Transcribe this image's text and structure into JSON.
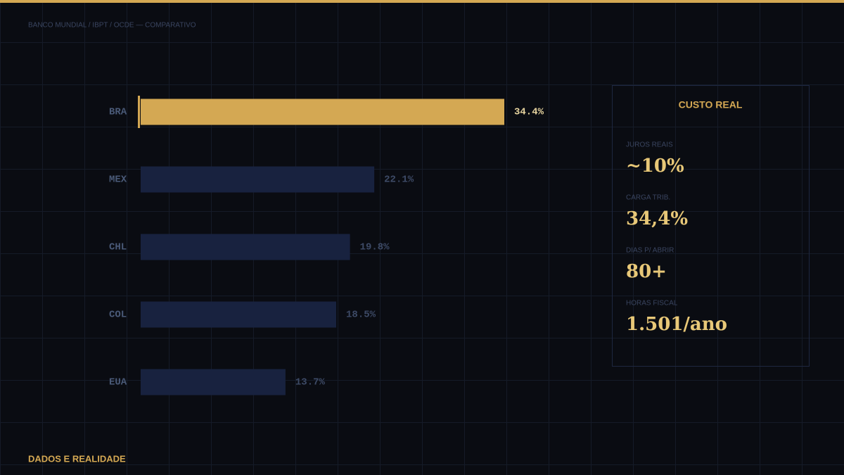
{
  "source": "BANCO MUNDIAL / IBPT / OCDE — COMPARATIVO",
  "footer": "DADOS E REALIDADE",
  "chart_data": {
    "type": "bar",
    "orientation": "horizontal",
    "categories": [
      "BRA",
      "MEX",
      "CHL",
      "COL",
      "EUA"
    ],
    "values": [
      34.4,
      22.1,
      19.8,
      18.5,
      13.7
    ],
    "value_labels": [
      "34.4%",
      "22.1%",
      "19.8%",
      "18.5%",
      "13.7%"
    ],
    "colors": [
      "#d4a853",
      "#18223f",
      "#18223f",
      "#18223f",
      "#18223f"
    ]
  },
  "panel": {
    "title": "CUSTO REAL",
    "items": [
      {
        "label": "JUROS REAIS",
        "value": "~10%"
      },
      {
        "label": "CARGA TRIB.",
        "value": "34,4%"
      },
      {
        "label": "DIAS P/ ABRIR",
        "value": "80+"
      },
      {
        "label": "HORAS FISCAL",
        "value": "1.501/ano"
      }
    ]
  }
}
